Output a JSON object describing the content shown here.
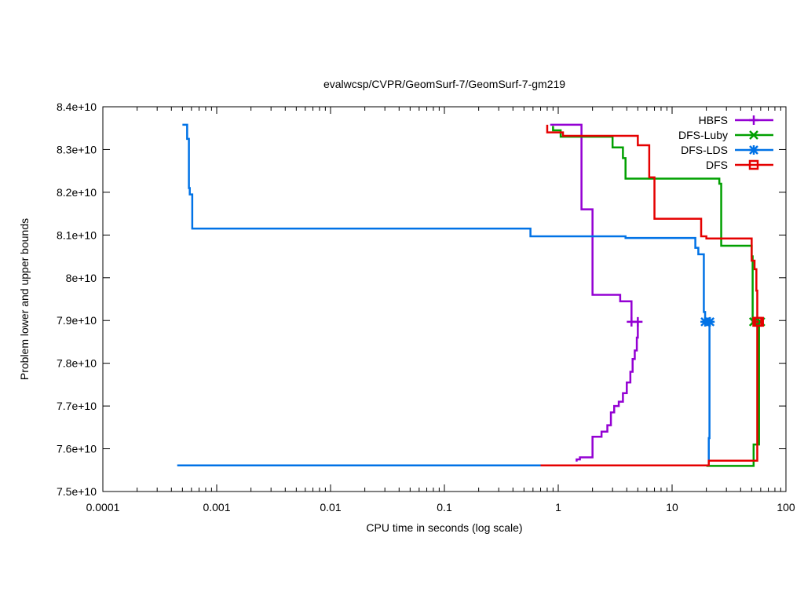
{
  "chart_data": {
    "type": "line",
    "title": "evalwcsp/CVPR/GeomSurf-7/GeomSurf-7-gm219",
    "xlabel": "CPU time in seconds (log scale)",
    "ylabel": "Problem lower and upper bounds",
    "xscale": "log",
    "xlim": [
      0.0001,
      100
    ],
    "ylim": [
      75000000000,
      84000000000
    ],
    "xticks": [
      {
        "value": 0.0001,
        "label": "0.0001"
      },
      {
        "value": 0.001,
        "label": "0.001"
      },
      {
        "value": 0.01,
        "label": "0.01"
      },
      {
        "value": 0.1,
        "label": "0.1"
      },
      {
        "value": 1,
        "label": "1"
      },
      {
        "value": 10,
        "label": "10"
      },
      {
        "value": 100,
        "label": "100"
      }
    ],
    "yticks": [
      {
        "value": 75000000000,
        "label": "7.5e+10"
      },
      {
        "value": 76000000000,
        "label": "7.6e+10"
      },
      {
        "value": 77000000000,
        "label": "7.7e+10"
      },
      {
        "value": 78000000000,
        "label": "7.8e+10"
      },
      {
        "value": 79000000000,
        "label": "7.9e+10"
      },
      {
        "value": 80000000000,
        "label": "8e+10"
      },
      {
        "value": 81000000000,
        "label": "8.1e+10"
      },
      {
        "value": 82000000000,
        "label": "8.2e+10"
      },
      {
        "value": 83000000000,
        "label": "8.3e+10"
      },
      {
        "value": 84000000000,
        "label": "8.4e+10"
      }
    ],
    "grid": false,
    "legend_position": "top-right",
    "series": [
      {
        "name": "HBFS",
        "color": "#9400d3",
        "marker": "plus",
        "marker_points": [
          [
            4.4,
            78970000000
          ],
          [
            5.0,
            78970000000
          ]
        ],
        "upper": [
          [
            0.85,
            83580000000
          ],
          [
            1.6,
            83580000000
          ],
          [
            1.6,
            81600000000
          ],
          [
            2.0,
            81600000000
          ],
          [
            2.0,
            79600000000
          ],
          [
            3.5,
            79600000000
          ],
          [
            3.5,
            79450000000
          ],
          [
            4.4,
            79450000000
          ],
          [
            4.4,
            78970000000
          ],
          [
            5.0,
            78970000000
          ]
        ],
        "lower": [
          [
            1.45,
            75700000000
          ],
          [
            1.45,
            75750000000
          ],
          [
            1.55,
            75750000000
          ],
          [
            1.55,
            75800000000
          ],
          [
            2.0,
            75800000000
          ],
          [
            2.0,
            76280000000
          ],
          [
            2.4,
            76280000000
          ],
          [
            2.4,
            76400000000
          ],
          [
            2.7,
            76400000000
          ],
          [
            2.7,
            76550000000
          ],
          [
            2.9,
            76550000000
          ],
          [
            2.9,
            76850000000
          ],
          [
            3.1,
            76850000000
          ],
          [
            3.1,
            77000000000
          ],
          [
            3.4,
            77000000000
          ],
          [
            3.4,
            77100000000
          ],
          [
            3.7,
            77100000000
          ],
          [
            3.7,
            77300000000
          ],
          [
            4.0,
            77300000000
          ],
          [
            4.0,
            77550000000
          ],
          [
            4.3,
            77550000000
          ],
          [
            4.3,
            77800000000
          ],
          [
            4.5,
            77800000000
          ],
          [
            4.5,
            78100000000
          ],
          [
            4.7,
            78100000000
          ],
          [
            4.7,
            78300000000
          ],
          [
            4.9,
            78300000000
          ],
          [
            4.9,
            78600000000
          ],
          [
            5.0,
            78600000000
          ],
          [
            5.0,
            78970000000
          ]
        ]
      },
      {
        "name": "DFS-Luby",
        "color": "#00a000",
        "marker": "cross",
        "marker_points": [
          [
            52,
            78970000000
          ],
          [
            60,
            78970000000
          ]
        ],
        "upper": [
          [
            0.9,
            83550000000
          ],
          [
            0.9,
            83450000000
          ],
          [
            1.05,
            83450000000
          ],
          [
            1.05,
            83300000000
          ],
          [
            3.0,
            83300000000
          ],
          [
            3.0,
            83050000000
          ],
          [
            3.7,
            83050000000
          ],
          [
            3.7,
            82800000000
          ],
          [
            3.9,
            82800000000
          ],
          [
            3.9,
            82320000000
          ],
          [
            26,
            82320000000
          ],
          [
            26,
            82200000000
          ],
          [
            27,
            82200000000
          ],
          [
            27,
            80750000000
          ],
          [
            50,
            80750000000
          ],
          [
            50,
            80500000000
          ],
          [
            51,
            80500000000
          ],
          [
            51,
            78970000000
          ],
          [
            60,
            78970000000
          ]
        ],
        "lower": [
          [
            20,
            75600000000
          ],
          [
            52,
            75600000000
          ],
          [
            52,
            76100000000
          ],
          [
            58,
            76100000000
          ],
          [
            58,
            78970000000
          ],
          [
            60,
            78970000000
          ]
        ]
      },
      {
        "name": "DFS-LDS",
        "color": "#0072e6",
        "marker": "star",
        "marker_points": [
          [
            19.5,
            78970000000
          ],
          [
            21.5,
            78970000000
          ]
        ],
        "upper": [
          [
            0.0005,
            83580000000
          ],
          [
            0.00055,
            83580000000
          ],
          [
            0.00055,
            83250000000
          ],
          [
            0.00057,
            83250000000
          ],
          [
            0.00057,
            82100000000
          ],
          [
            0.00058,
            82100000000
          ],
          [
            0.00058,
            81950000000
          ],
          [
            0.00061,
            81950000000
          ],
          [
            0.00061,
            81150000000
          ],
          [
            0.57,
            81150000000
          ],
          [
            0.57,
            80970000000
          ],
          [
            3.9,
            80970000000
          ],
          [
            3.9,
            80930000000
          ],
          [
            16,
            80930000000
          ],
          [
            16,
            80700000000
          ],
          [
            17,
            80700000000
          ],
          [
            17,
            80550000000
          ],
          [
            19,
            80550000000
          ],
          [
            19,
            79200000000
          ],
          [
            19.5,
            79200000000
          ],
          [
            19.5,
            78970000000
          ],
          [
            21.5,
            78970000000
          ]
        ],
        "lower": [
          [
            0.00045,
            75610000000
          ],
          [
            21,
            75610000000
          ],
          [
            21,
            76250000000
          ],
          [
            21.3,
            76250000000
          ],
          [
            21.3,
            78970000000
          ],
          [
            21.5,
            78970000000
          ]
        ]
      },
      {
        "name": "DFS",
        "color": "#e50000",
        "marker": "square",
        "marker_points": [
          [
            56,
            78970000000
          ],
          [
            58,
            78970000000
          ]
        ],
        "upper": [
          [
            0.8,
            83580000000
          ],
          [
            0.8,
            83400000000
          ],
          [
            1.1,
            83400000000
          ],
          [
            1.1,
            83320000000
          ],
          [
            5.0,
            83320000000
          ],
          [
            5.0,
            83100000000
          ],
          [
            6.3,
            83100000000
          ],
          [
            6.3,
            82350000000
          ],
          [
            7.0,
            82350000000
          ],
          [
            7.0,
            81380000000
          ],
          [
            18,
            81380000000
          ],
          [
            18,
            80970000000
          ],
          [
            20,
            80970000000
          ],
          [
            20,
            80920000000
          ],
          [
            50,
            80920000000
          ],
          [
            50,
            80400000000
          ],
          [
            53,
            80400000000
          ],
          [
            53,
            80200000000
          ],
          [
            55,
            80200000000
          ],
          [
            55,
            79700000000
          ],
          [
            56,
            79700000000
          ],
          [
            56,
            78970000000
          ],
          [
            58,
            78970000000
          ]
        ],
        "lower": [
          [
            0.7,
            75610000000
          ],
          [
            21,
            75610000000
          ],
          [
            21,
            75720000000
          ],
          [
            56,
            75720000000
          ],
          [
            56,
            78970000000
          ],
          [
            58,
            78970000000
          ]
        ]
      }
    ]
  }
}
